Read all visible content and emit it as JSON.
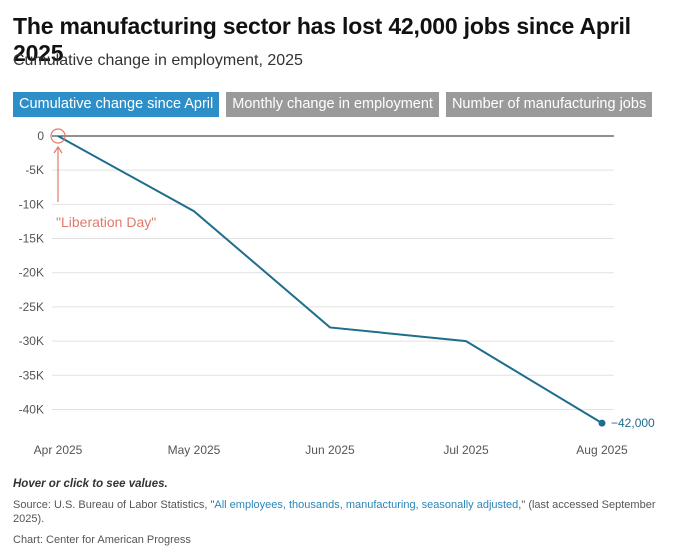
{
  "header": {
    "title": "The manufacturing sector has lost 42,000 jobs since April 2025",
    "subtitle": "Cumulative change in employment, 2025"
  },
  "tabs": [
    {
      "label": "Cumulative change since April",
      "active": true
    },
    {
      "label": "Monthly change in employment",
      "active": false
    },
    {
      "label": "Number of manufacturing jobs",
      "active": false
    }
  ],
  "chart_data": {
    "type": "line",
    "title": "The manufacturing sector has lost 42,000 jobs since April 2025",
    "subtitle": "Cumulative change in employment, 2025",
    "categories": [
      "Apr 2025",
      "May 2025",
      "Jun 2025",
      "Jul 2025",
      "Aug 2025"
    ],
    "series": [
      {
        "values": [
          0,
          -11000,
          -28000,
          -30000,
          -42000
        ],
        "color": "#1e6e8c"
      }
    ],
    "yticks": [
      0,
      -5000,
      -10000,
      -15000,
      -20000,
      -25000,
      -30000,
      -35000,
      -40000
    ],
    "ytick_labels": [
      "0",
      "-5K",
      "-10K",
      "-15K",
      "-20K",
      "-25K",
      "-30K",
      "-35K",
      "-40K"
    ],
    "ylim": [
      -43000,
      0
    ],
    "grid": true,
    "end_label": "−42,000",
    "annotation": {
      "text": "\"Liberation Day\"",
      "x": "Apr 2025",
      "y": 0,
      "color": "#e07a6a"
    }
  },
  "footer": {
    "hint": "Hover or click to see values.",
    "source_prefix": "Source: U.S. Bureau of Labor Statistics, \"",
    "source_link": "All employees, thousands, manufacturing, seasonally adjusted",
    "source_suffix": ",\" (last accessed September 2025).",
    "credit": "Chart: Center for American Progress"
  }
}
